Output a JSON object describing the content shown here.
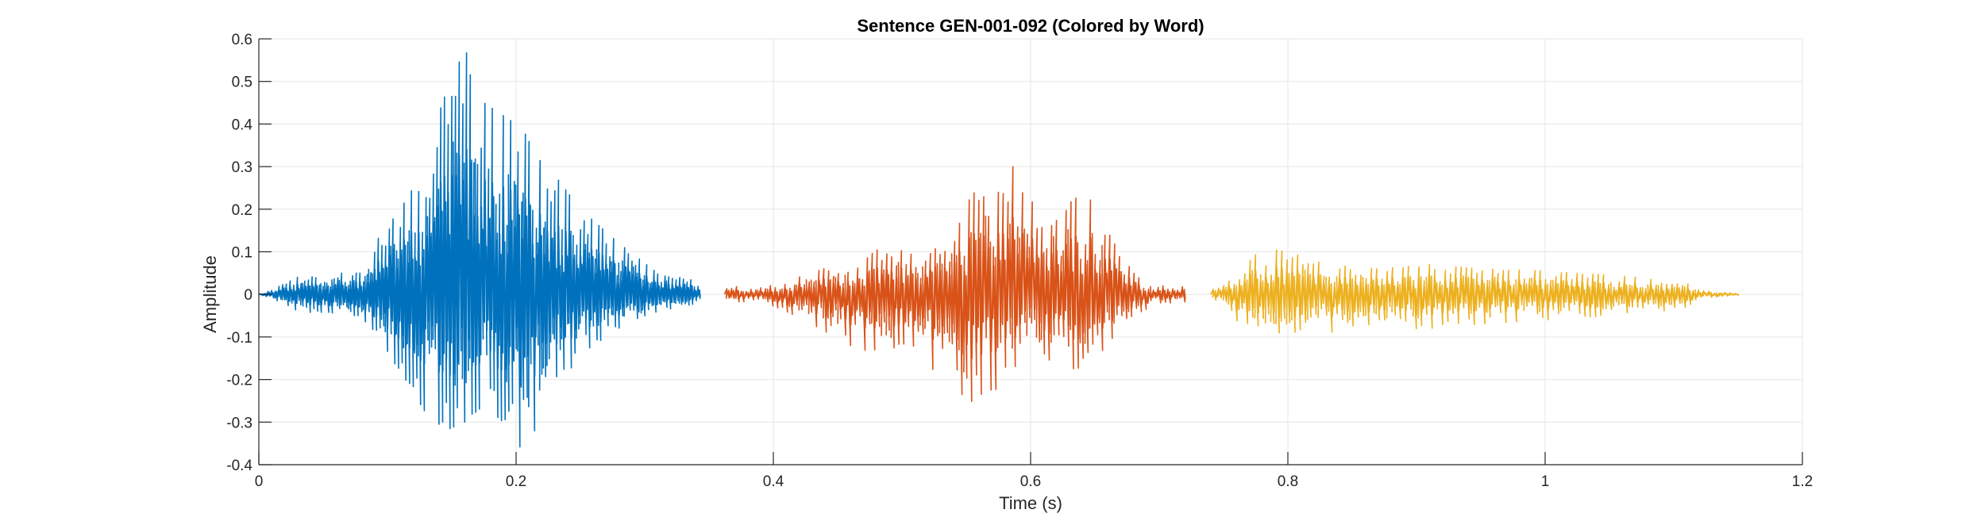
{
  "chart_data": {
    "type": "line",
    "title": "Sentence GEN-001-092 (Colored by Word)",
    "xlabel": "Time (s)",
    "ylabel": "Amplitude",
    "xlim": [
      0,
      1.2
    ],
    "ylim": [
      -0.4,
      0.6
    ],
    "xticks": [
      0,
      0.2,
      0.4,
      0.6,
      0.8,
      1,
      1.2
    ],
    "xtick_labels": [
      "0",
      "0.2",
      "0.4",
      "0.6",
      "0.8",
      "1",
      "1.2"
    ],
    "yticks": [
      -0.4,
      -0.3,
      -0.2,
      -0.1,
      0,
      0.1,
      0.2,
      0.3,
      0.4,
      0.5,
      0.6
    ],
    "ytick_labels": [
      "-0.4",
      "-0.3",
      "-0.2",
      "-0.1",
      "0",
      "0.1",
      "0.2",
      "0.3",
      "0.4",
      "0.5",
      "0.6"
    ],
    "grid": true,
    "series": [
      {
        "color": "#0072BD",
        "x_start": 0.0,
        "x_end": 0.343,
        "envelope": [
          {
            "t": 0.0,
            "pos": 0.0,
            "neg": 0.0
          },
          {
            "t": 0.01,
            "pos": 0.01,
            "neg": -0.01
          },
          {
            "t": 0.03,
            "pos": 0.04,
            "neg": -0.04
          },
          {
            "t": 0.06,
            "pos": 0.05,
            "neg": -0.05
          },
          {
            "t": 0.08,
            "pos": 0.05,
            "neg": -0.05
          },
          {
            "t": 0.09,
            "pos": 0.12,
            "neg": -0.1
          },
          {
            "t": 0.11,
            "pos": 0.2,
            "neg": -0.18
          },
          {
            "t": 0.13,
            "pos": 0.3,
            "neg": -0.28
          },
          {
            "t": 0.145,
            "pos": 0.48,
            "neg": -0.32
          },
          {
            "t": 0.16,
            "pos": 0.58,
            "neg": -0.3
          },
          {
            "t": 0.175,
            "pos": 0.45,
            "neg": -0.26
          },
          {
            "t": 0.19,
            "pos": 0.42,
            "neg": -0.3
          },
          {
            "t": 0.21,
            "pos": 0.38,
            "neg": -0.39
          },
          {
            "t": 0.23,
            "pos": 0.28,
            "neg": -0.24
          },
          {
            "t": 0.25,
            "pos": 0.2,
            "neg": -0.14
          },
          {
            "t": 0.28,
            "pos": 0.12,
            "neg": -0.08
          },
          {
            "t": 0.31,
            "pos": 0.05,
            "neg": -0.04
          },
          {
            "t": 0.343,
            "pos": 0.03,
            "neg": -0.02
          }
        ],
        "cycles": 120
      },
      {
        "color": "#D95319",
        "x_start": 0.362,
        "x_end": 0.72,
        "envelope": [
          {
            "t": 0.362,
            "pos": 0.02,
            "neg": -0.02
          },
          {
            "t": 0.39,
            "pos": 0.015,
            "neg": -0.015
          },
          {
            "t": 0.41,
            "pos": 0.03,
            "neg": -0.04
          },
          {
            "t": 0.43,
            "pos": 0.06,
            "neg": -0.07
          },
          {
            "t": 0.46,
            "pos": 0.07,
            "neg": -0.12
          },
          {
            "t": 0.49,
            "pos": 0.12,
            "neg": -0.15
          },
          {
            "t": 0.51,
            "pos": 0.09,
            "neg": -0.12
          },
          {
            "t": 0.53,
            "pos": 0.12,
            "neg": -0.2
          },
          {
            "t": 0.55,
            "pos": 0.22,
            "neg": -0.29
          },
          {
            "t": 0.565,
            "pos": 0.3,
            "neg": -0.25
          },
          {
            "t": 0.58,
            "pos": 0.34,
            "neg": -0.2
          },
          {
            "t": 0.6,
            "pos": 0.25,
            "neg": -0.14
          },
          {
            "t": 0.62,
            "pos": 0.22,
            "neg": -0.18
          },
          {
            "t": 0.645,
            "pos": 0.23,
            "neg": -0.17
          },
          {
            "t": 0.665,
            "pos": 0.12,
            "neg": -0.1
          },
          {
            "t": 0.68,
            "pos": 0.05,
            "neg": -0.05
          },
          {
            "t": 0.7,
            "pos": 0.02,
            "neg": -0.02
          },
          {
            "t": 0.72,
            "pos": 0.02,
            "neg": -0.02
          }
        ],
        "cycles": 95
      },
      {
        "color": "#EDB120",
        "x_start": 0.74,
        "x_end": 1.15,
        "envelope": [
          {
            "t": 0.74,
            "pos": 0.01,
            "neg": -0.01
          },
          {
            "t": 0.75,
            "pos": 0.02,
            "neg": -0.02
          },
          {
            "t": 0.765,
            "pos": 0.06,
            "neg": -0.08
          },
          {
            "t": 0.78,
            "pos": 0.11,
            "neg": -0.12
          },
          {
            "t": 0.8,
            "pos": 0.1,
            "neg": -0.11
          },
          {
            "t": 0.83,
            "pos": 0.07,
            "neg": -0.09
          },
          {
            "t": 0.87,
            "pos": 0.06,
            "neg": -0.08
          },
          {
            "t": 0.91,
            "pos": 0.07,
            "neg": -0.08
          },
          {
            "t": 0.95,
            "pos": 0.06,
            "neg": -0.07
          },
          {
            "t": 1.0,
            "pos": 0.055,
            "neg": -0.06
          },
          {
            "t": 1.05,
            "pos": 0.045,
            "neg": -0.05
          },
          {
            "t": 1.09,
            "pos": 0.035,
            "neg": -0.04
          },
          {
            "t": 1.11,
            "pos": 0.03,
            "neg": -0.03
          },
          {
            "t": 1.12,
            "pos": 0.01,
            "neg": -0.01
          },
          {
            "t": 1.15,
            "pos": 0.002,
            "neg": -0.002
          }
        ],
        "cycles": 100
      }
    ]
  }
}
